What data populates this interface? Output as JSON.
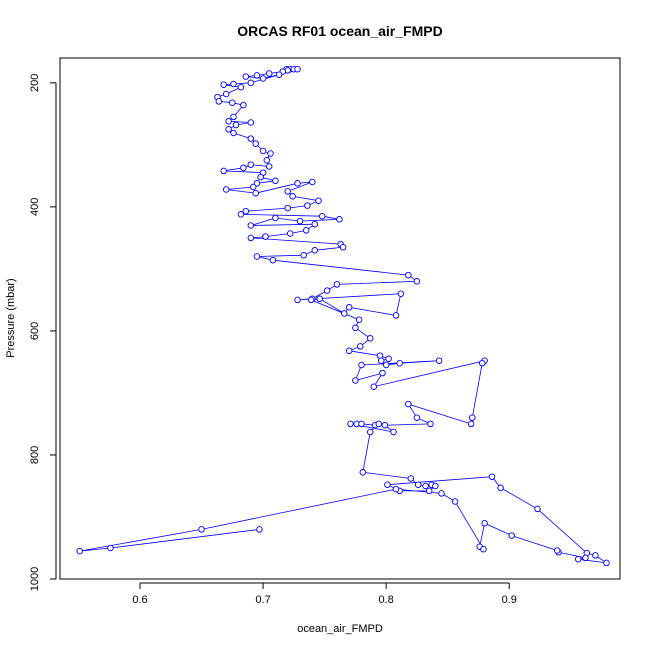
{
  "chart_data": {
    "type": "line",
    "title": "ORCAS RF01 ocean_air_FMPD",
    "xlabel": "ocean_air_FMPD",
    "ylabel": "Pressure (mbar)",
    "xlim": [
      0.535,
      0.99
    ],
    "ylim": [
      1000,
      160
    ],
    "y_reversed": true,
    "xticks": [
      0.6,
      0.7,
      0.8,
      0.9
    ],
    "xtick_labels": [
      "0.6",
      "0.7",
      "0.8",
      "0.9"
    ],
    "yticks": [
      200,
      400,
      600,
      800,
      1000
    ],
    "ytick_labels": [
      "200",
      "400",
      "600",
      "800",
      "1000"
    ],
    "grid": false,
    "legend": "none",
    "series": [
      {
        "color": "#0000ff",
        "marker": "open-circle",
        "points": [
          [
            0.719,
            178
          ],
          [
            0.722,
            178
          ],
          [
            0.725,
            178
          ],
          [
            0.728,
            178
          ],
          [
            0.72,
            180
          ],
          [
            0.716,
            182
          ],
          [
            0.705,
            185
          ],
          [
            0.695,
            188
          ],
          [
            0.686,
            190
          ],
          [
            0.7,
            193
          ],
          [
            0.713,
            187
          ],
          [
            0.69,
            200
          ],
          [
            0.676,
            202
          ],
          [
            0.668,
            203
          ],
          [
            0.682,
            207
          ],
          [
            0.67,
            218
          ],
          [
            0.663,
            223
          ],
          [
            0.664,
            230
          ],
          [
            0.675,
            232
          ],
          [
            0.684,
            236
          ],
          [
            0.676,
            255
          ],
          [
            0.672,
            262
          ],
          [
            0.69,
            264
          ],
          [
            0.678,
            268
          ],
          [
            0.672,
            275
          ],
          [
            0.676,
            281
          ],
          [
            0.69,
            290
          ],
          [
            0.694,
            298
          ],
          [
            0.7,
            310
          ],
          [
            0.706,
            314
          ],
          [
            0.703,
            325
          ],
          [
            0.705,
            335
          ],
          [
            0.69,
            332
          ],
          [
            0.684,
            337
          ],
          [
            0.668,
            342
          ],
          [
            0.7,
            345
          ],
          [
            0.698,
            352
          ],
          [
            0.71,
            358
          ],
          [
            0.695,
            362
          ],
          [
            0.692,
            368
          ],
          [
            0.67,
            372
          ],
          [
            0.694,
            378
          ],
          [
            0.728,
            362
          ],
          [
            0.74,
            360
          ],
          [
            0.72,
            375
          ],
          [
            0.724,
            383
          ],
          [
            0.745,
            390
          ],
          [
            0.736,
            398
          ],
          [
            0.72,
            402
          ],
          [
            0.686,
            407
          ],
          [
            0.682,
            412
          ],
          [
            0.748,
            415
          ],
          [
            0.762,
            420
          ],
          [
            0.73,
            423
          ],
          [
            0.71,
            418
          ],
          [
            0.69,
            430
          ],
          [
            0.742,
            428
          ],
          [
            0.735,
            438
          ],
          [
            0.722,
            443
          ],
          [
            0.702,
            448
          ],
          [
            0.69,
            450
          ],
          [
            0.763,
            460
          ],
          [
            0.765,
            465
          ],
          [
            0.742,
            470
          ],
          [
            0.733,
            478
          ],
          [
            0.695,
            480
          ],
          [
            0.708,
            486
          ],
          [
            0.818,
            510
          ],
          [
            0.825,
            520
          ],
          [
            0.76,
            525
          ],
          [
            0.752,
            535
          ],
          [
            0.74,
            548
          ],
          [
            0.728,
            550
          ],
          [
            0.812,
            540
          ],
          [
            0.808,
            575
          ],
          [
            0.77,
            562
          ],
          [
            0.766,
            572
          ],
          [
            0.746,
            548
          ],
          [
            0.739,
            550
          ],
          [
            0.778,
            582
          ],
          [
            0.775,
            595
          ],
          [
            0.787,
            612
          ],
          [
            0.779,
            625
          ],
          [
            0.77,
            632
          ],
          [
            0.795,
            640
          ],
          [
            0.802,
            645
          ],
          [
            0.796,
            648
          ],
          [
            0.8,
            655
          ],
          [
            0.811,
            652
          ],
          [
            0.843,
            648
          ],
          [
            0.78,
            655
          ],
          [
            0.775,
            680
          ],
          [
            0.797,
            668
          ],
          [
            0.79,
            690
          ],
          [
            0.88,
            648
          ],
          [
            0.878,
            652
          ],
          [
            0.87,
            740
          ],
          [
            0.869,
            750
          ],
          [
            0.818,
            718
          ],
          [
            0.825,
            740
          ],
          [
            0.836,
            750
          ],
          [
            0.799,
            752
          ],
          [
            0.806,
            763
          ],
          [
            0.771,
            750
          ],
          [
            0.776,
            750
          ],
          [
            0.78,
            750
          ],
          [
            0.791,
            752
          ],
          [
            0.794,
            750
          ],
          [
            0.787,
            763
          ],
          [
            0.781,
            828
          ],
          [
            0.82,
            838
          ],
          [
            0.826,
            848
          ],
          [
            0.832,
            850
          ],
          [
            0.837,
            848
          ],
          [
            0.84,
            850
          ],
          [
            0.835,
            858
          ],
          [
            0.811,
            858
          ],
          [
            0.801,
            848
          ],
          [
            0.886,
            835
          ],
          [
            0.893,
            853
          ],
          [
            0.923,
            887
          ],
          [
            0.963,
            958
          ],
          [
            0.97,
            962
          ],
          [
            0.979,
            974
          ],
          [
            0.956,
            968
          ],
          [
            0.962,
            966
          ],
          [
            0.94,
            957
          ],
          [
            0.939,
            954
          ],
          [
            0.902,
            930
          ],
          [
            0.88,
            910
          ],
          [
            0.876,
            948
          ],
          [
            0.879,
            952
          ],
          [
            0.856,
            875
          ],
          [
            0.845,
            862
          ],
          [
            0.808,
            855
          ],
          [
            0.65,
            920
          ],
          [
            0.551,
            955
          ],
          [
            0.576,
            950
          ],
          [
            0.697,
            920
          ]
        ]
      }
    ]
  }
}
